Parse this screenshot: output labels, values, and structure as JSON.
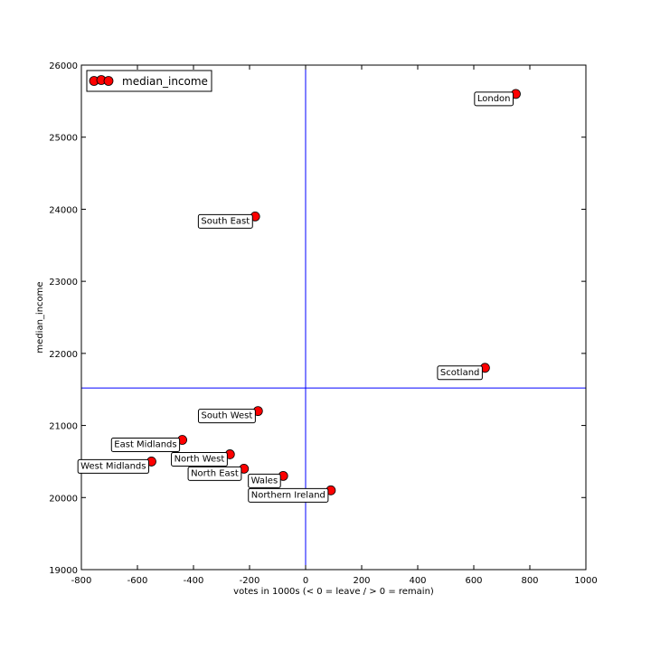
{
  "chart_data": {
    "type": "scatter",
    "title": "",
    "xlabel": "votes in 1000s (< 0 = leave / > 0 = remain)",
    "ylabel": "median_income",
    "xlim": [
      -800,
      1000
    ],
    "ylim": [
      19000,
      26000
    ],
    "xticks": [
      -800,
      -600,
      -400,
      -200,
      0,
      200,
      400,
      600,
      800,
      1000
    ],
    "yticks": [
      19000,
      20000,
      21000,
      22000,
      23000,
      24000,
      25000,
      26000
    ],
    "xtick_labels": [
      "-800",
      "-600",
      "-400",
      "-200",
      "0",
      "200",
      "400",
      "600",
      "800",
      "1000"
    ],
    "ytick_labels": [
      "19000",
      "20000",
      "21000",
      "22000",
      "23000",
      "24000",
      "25000",
      "26000"
    ],
    "grid": false,
    "legend": {
      "placement": "top-left",
      "entries": [
        "median_income"
      ]
    },
    "reference_lines": {
      "vertical_x": 0,
      "horizontal_y": 21520
    },
    "colors": {
      "marker": "#ff0000",
      "reference_line": "#0000ff"
    },
    "series": [
      {
        "name": "median_income",
        "points": [
          {
            "label": "London",
            "x": 750,
            "y": 25600
          },
          {
            "label": "South East",
            "x": -180,
            "y": 23900
          },
          {
            "label": "Scotland",
            "x": 640,
            "y": 21800
          },
          {
            "label": "South West",
            "x": -170,
            "y": 21200
          },
          {
            "label": "East Midlands",
            "x": -440,
            "y": 20800
          },
          {
            "label": "North West",
            "x": -270,
            "y": 20600
          },
          {
            "label": "West Midlands",
            "x": -550,
            "y": 20500
          },
          {
            "label": "North East",
            "x": -220,
            "y": 20400
          },
          {
            "label": "Wales",
            "x": -80,
            "y": 20300
          },
          {
            "label": "Northern Ireland",
            "x": 90,
            "y": 20100
          }
        ]
      }
    ]
  }
}
